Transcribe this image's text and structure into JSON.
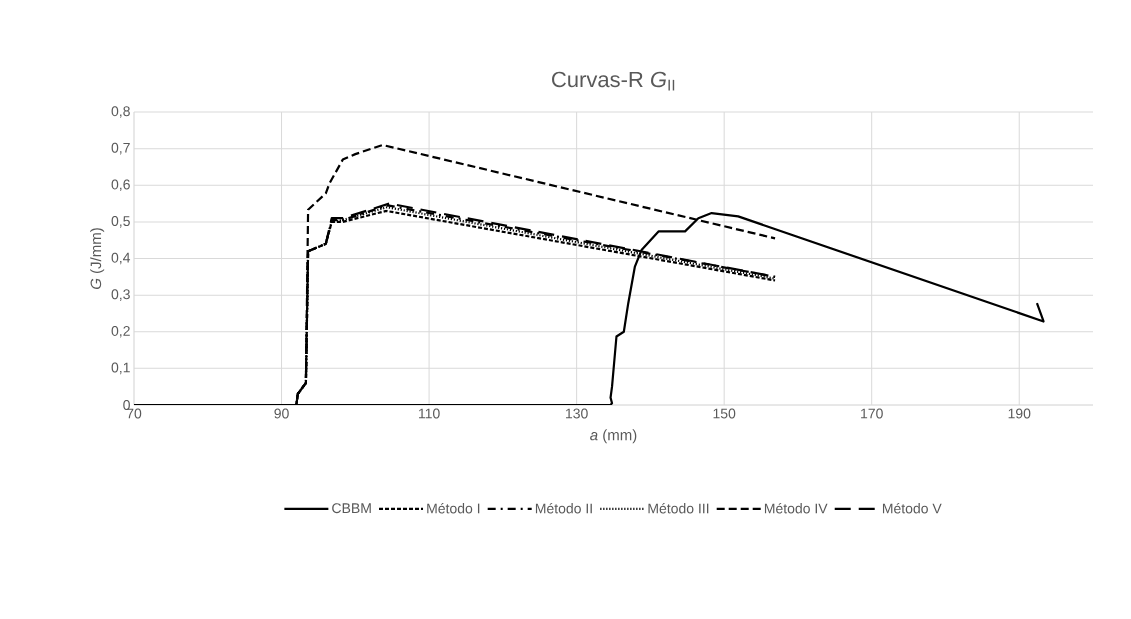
{
  "chart_data": {
    "type": "line",
    "title": "Curvas-R *G*$_{II}$",
    "xlabel": "*a* (mm)",
    "ylabel": "*G* (J/mm)",
    "xlim": [
      70,
      200
    ],
    "xticks": [
      70,
      90,
      110,
      130,
      150,
      170,
      190
    ],
    "ylim": [
      0,
      0.8
    ],
    "yticks": [
      0,
      {
        "value": 0.1,
        "label": "0,1"
      },
      {
        "value": 0.2,
        "label": "0,2"
      },
      {
        "value": 0.3,
        "label": "0,3"
      },
      {
        "value": 0.4,
        "label": "0,4"
      },
      {
        "value": 0.5,
        "label": "0,5"
      },
      {
        "value": 0.6,
        "label": "0,6"
      },
      {
        "value": 0.7,
        "label": "0,7"
      },
      {
        "value": 0.8,
        "label": "0,8"
      }
    ],
    "grid": true,
    "legend": "bottom",
    "series": [
      {
        "name": "CBBM",
        "color": "#000000",
        "line_style": "solid",
        "x": [
          70,
          134.6,
          134.8,
          134.6,
          134.8,
          135.4,
          136.4,
          137,
          137.9,
          138.8,
          141.1,
          144.7,
          146.5,
          148.3,
          151.9,
          193.3,
          192.4
        ],
        "values": [
          0,
          0,
          0.005,
          0.02,
          0.05,
          0.187,
          0.2,
          0.278,
          0.378,
          0.423,
          0.474,
          0.474,
          0.51,
          0.524,
          0.515,
          0.228,
          0.278
        ]
      },
      {
        "name": "Método I",
        "color": "#000000",
        "line_style": "dashed",
        "x": [
          70,
          92,
          92.2,
          93.3,
          93.6,
          96,
          96.8,
          98.3,
          104.2,
          156.9
        ],
        "values": [
          0,
          0,
          0.03,
          0.06,
          0.42,
          0.44,
          0.5,
          0.5,
          0.53,
          0.34
        ]
      },
      {
        "name": "Método II",
        "color": "#000000",
        "line_style": "dashdot",
        "x": [
          70,
          92,
          92.2,
          93.3,
          93.6,
          96,
          96.8,
          98.3,
          104.4,
          156.9
        ],
        "values": [
          0,
          0,
          0.03,
          0.06,
          0.42,
          0.44,
          0.505,
          0.505,
          0.545,
          0.35
        ]
      },
      {
        "name": "Método III",
        "color": "#000000",
        "line_style": "dotted",
        "x": [
          70,
          92,
          92.2,
          93.3,
          93.6,
          96,
          96.8,
          98.3,
          104.3,
          156.9
        ],
        "values": [
          0,
          0,
          0.03,
          0.06,
          0.42,
          0.44,
          0.5,
          0.505,
          0.54,
          0.345
        ]
      },
      {
        "name": "Método IV",
        "color": "#000000",
        "line_style": "loosely dashed",
        "x": [
          70,
          92,
          92.2,
          93.3,
          93.6,
          96,
          96.5,
          98.3,
          100,
          103.7,
          156.9
        ],
        "values": [
          0,
          0,
          0.03,
          0.06,
          0.533,
          0.578,
          0.605,
          0.67,
          0.685,
          0.71,
          0.455
        ]
      },
      {
        "name": "Método V",
        "color": "#000000",
        "line_style": "long dashed",
        "x": [
          70,
          92,
          92.2,
          93.3,
          93.6,
          96,
          96.8,
          98.3,
          104.6,
          156.9
        ],
        "values": [
          0,
          0,
          0.03,
          0.06,
          0.42,
          0.44,
          0.51,
          0.51,
          0.55,
          0.35
        ]
      }
    ]
  }
}
